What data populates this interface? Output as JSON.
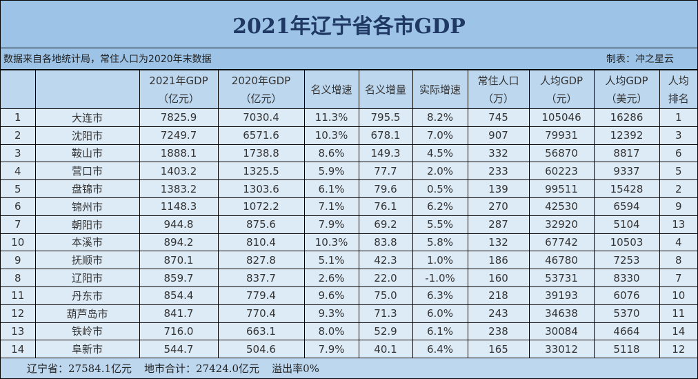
{
  "title": "2021年辽宁省各市GDP",
  "subtitle": {
    "source": "数据来自各地统计局，常住人口为2020年末数据",
    "maker": "制表：冲之星云"
  },
  "headers": [
    [
      "",
      ""
    ],
    [
      "",
      ""
    ],
    [
      "2021年GDP",
      "（亿元）"
    ],
    [
      "2020年GDP",
      "（亿元）"
    ],
    [
      "名义增速",
      ""
    ],
    [
      "名义增量",
      ""
    ],
    [
      "实际增速",
      ""
    ],
    [
      "常住人口",
      "（万）"
    ],
    [
      "人均GDP",
      "（元）"
    ],
    [
      "人均GDP",
      "（美元）"
    ],
    [
      "人均",
      "排名"
    ]
  ],
  "rows": [
    [
      "1",
      "大连市",
      "7825.9",
      "7030.4",
      "11.3%",
      "795.5",
      "8.2%",
      "745",
      "105046",
      "16286",
      "1"
    ],
    [
      "2",
      "沈阳市",
      "7249.7",
      "6571.6",
      "10.3%",
      "678.1",
      "7.0%",
      "907",
      "79931",
      "12392",
      "3"
    ],
    [
      "3",
      "鞍山市",
      "1888.1",
      "1738.8",
      "8.6%",
      "149.3",
      "4.5%",
      "332",
      "56870",
      "8817",
      "6"
    ],
    [
      "4",
      "营口市",
      "1403.2",
      "1325.5",
      "5.9%",
      "77.7",
      "2.0%",
      "233",
      "60223",
      "9337",
      "5"
    ],
    [
      "5",
      "盘锦市",
      "1383.2",
      "1303.6",
      "6.1%",
      "79.6",
      "0.5%",
      "139",
      "99511",
      "15428",
      "2"
    ],
    [
      "6",
      "锦州市",
      "1148.3",
      "1072.2",
      "7.1%",
      "76.1",
      "6.2%",
      "270",
      "42530",
      "6594",
      "9"
    ],
    [
      "7",
      "朝阳市",
      "944.8",
      "875.6",
      "7.9%",
      "69.2",
      "5.5%",
      "287",
      "32920",
      "5104",
      "13"
    ],
    [
      "10",
      "本溪市",
      "894.2",
      "810.4",
      "10.3%",
      "83.8",
      "5.8%",
      "132",
      "67742",
      "10503",
      "4"
    ],
    [
      "9",
      "抚顺市",
      "870.1",
      "827.8",
      "5.1%",
      "42.3",
      "1.0%",
      "186",
      "46780",
      "7253",
      "8"
    ],
    [
      "8",
      "辽阳市",
      "859.7",
      "837.7",
      "2.6%",
      "22.0",
      "-1.0%",
      "160",
      "53731",
      "8330",
      "7"
    ],
    [
      "11",
      "丹东市",
      "854.4",
      "779.4",
      "9.6%",
      "75.0",
      "6.3%",
      "218",
      "39193",
      "6076",
      "10"
    ],
    [
      "12",
      "葫芦岛市",
      "841.7",
      "770.4",
      "9.3%",
      "71.3",
      "6.0%",
      "243",
      "34638",
      "5370",
      "11"
    ],
    [
      "13",
      "铁岭市",
      "716.0",
      "663.1",
      "8.0%",
      "52.9",
      "6.1%",
      "238",
      "30084",
      "4664",
      "14"
    ],
    [
      "14",
      "阜新市",
      "544.7",
      "504.6",
      "7.9%",
      "40.1",
      "6.4%",
      "165",
      "33012",
      "5118",
      "12"
    ]
  ],
  "footer": {
    "province": "辽宁省：27584.1亿元",
    "cities_total": "地市合计：27424.0亿元",
    "overflow": "溢出率0%"
  },
  "colors": {
    "title_bg": "#9dc3e6",
    "header_bg": "#bdd7ee",
    "row_bg": "#ddebf7",
    "title_text": "#1f3864"
  }
}
